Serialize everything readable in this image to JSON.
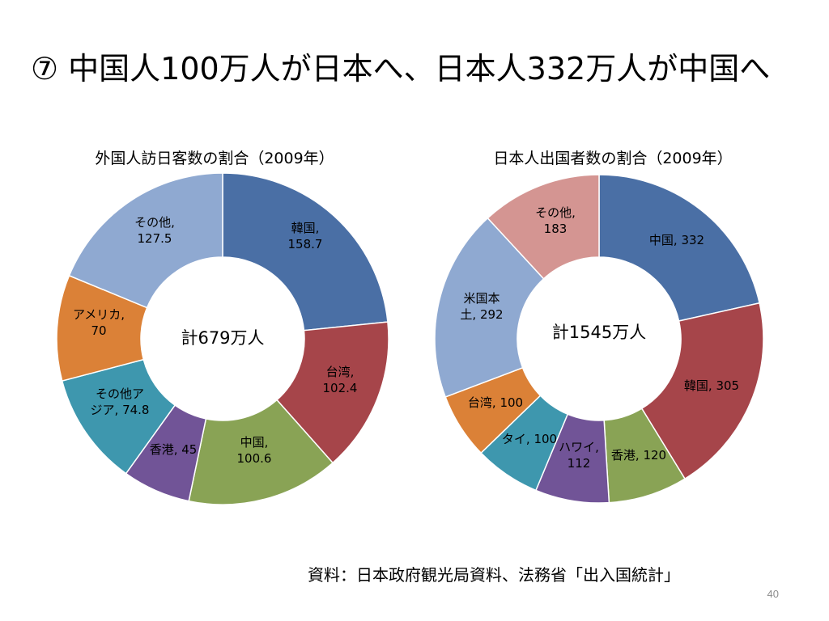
{
  "slide": {
    "title": "⑦ 中国人100万人が日本へ、日本人332万人が中国へ",
    "source": "資料：日本政府観光局資料、法務省「出入国統計」",
    "page_number": "40"
  },
  "chart_data": [
    {
      "type": "pie",
      "style": "donut",
      "title": "外国人訪日客数の割合（2009年）",
      "center_label": "計679万人",
      "categories": [
        "韓国",
        "台湾",
        "中国",
        "香港",
        "その他アジア",
        "アメリカ",
        "その他"
      ],
      "values": [
        158.7,
        102.4,
        100.6,
        45,
        74.8,
        70,
        127.5
      ],
      "colors": [
        "#4a6fa5",
        "#a6454a",
        "#89a355",
        "#715497",
        "#3e97ae",
        "#db8137",
        "#8fa9d1"
      ],
      "label_lines": [
        [
          "韓国,",
          "158.7"
        ],
        [
          "台湾,",
          "102.4"
        ],
        [
          "中国,",
          "100.6"
        ],
        [
          "香港, 45"
        ],
        [
          "その他ア",
          "ジア, 74.8"
        ],
        [
          "アメリカ,",
          "70"
        ],
        [
          "その他,",
          "127.5"
        ]
      ]
    },
    {
      "type": "pie",
      "style": "donut",
      "title": "日本人出国者数の割合（2009年）",
      "center_label": "計1545万人",
      "categories": [
        "中国",
        "韓国",
        "香港",
        "ハワイ",
        "タイ",
        "台湾",
        "米国本土",
        "その他"
      ],
      "values": [
        332,
        305,
        120,
        112,
        100,
        100,
        292,
        183
      ],
      "colors": [
        "#4a6fa5",
        "#a6454a",
        "#89a355",
        "#715497",
        "#3e97ae",
        "#db8137",
        "#8fa9d1",
        "#d49592"
      ],
      "label_lines": [
        [
          "中国, 332"
        ],
        [
          "韓国, 305"
        ],
        [
          "香港, 120"
        ],
        [
          "ハワイ,",
          "112"
        ],
        [
          "タイ, 100"
        ],
        [
          "台湾, 100"
        ],
        [
          "米国本",
          "土, 292"
        ],
        [
          "その他,",
          "183"
        ]
      ]
    }
  ]
}
